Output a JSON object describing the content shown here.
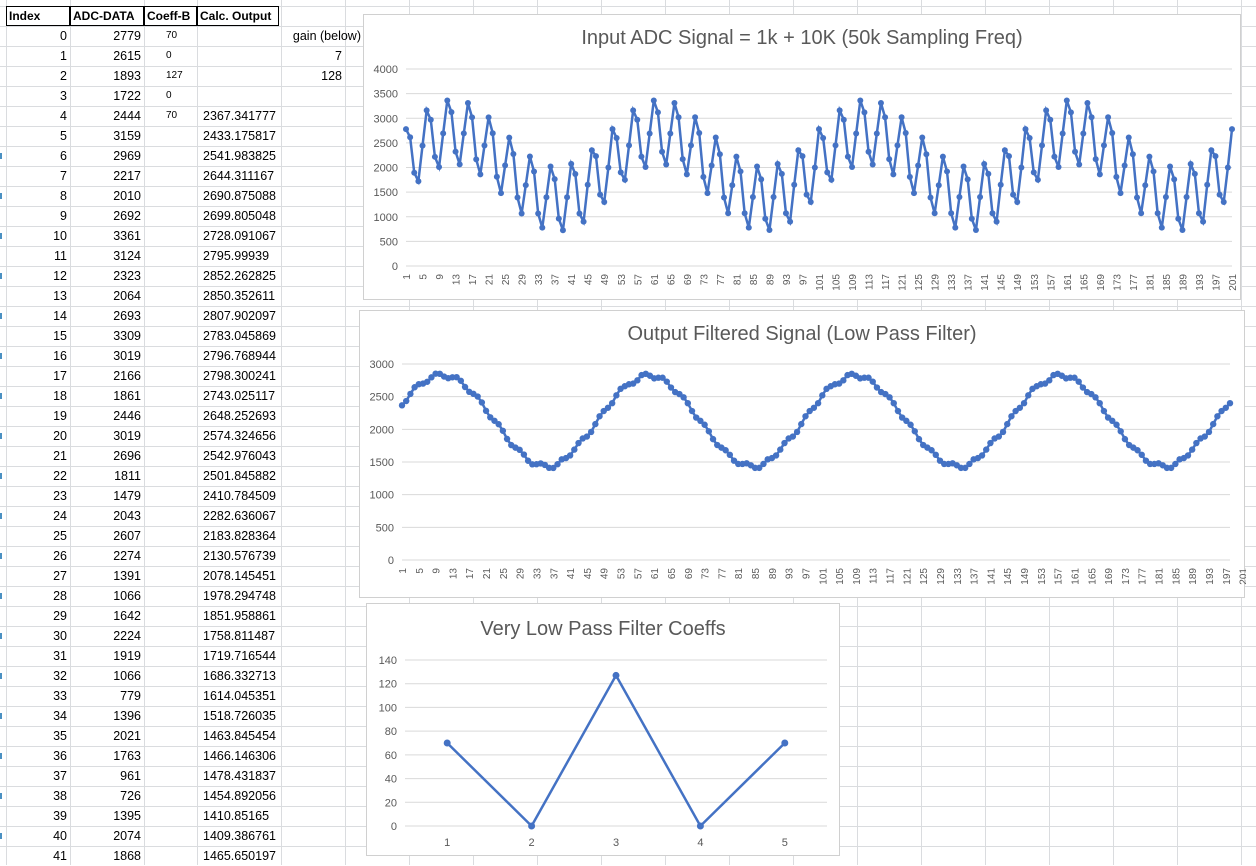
{
  "sheet": {
    "headers": {
      "index": "Index",
      "adc": "ADC-DATA",
      "coeff": "Coeff-B",
      "calc": "Calc. Output"
    },
    "gain_label": "gain (below)",
    "gain_values": [
      "7",
      "128"
    ],
    "rows": [
      {
        "index": "0",
        "adc": "2779",
        "coeff": "70",
        "calc": ""
      },
      {
        "index": "1",
        "adc": "2615",
        "coeff": "0",
        "calc": ""
      },
      {
        "index": "2",
        "adc": "1893",
        "coeff": "127",
        "calc": ""
      },
      {
        "index": "3",
        "adc": "1722",
        "coeff": "0",
        "calc": ""
      },
      {
        "index": "4",
        "adc": "2444",
        "coeff": "70",
        "calc": "2367.341777"
      },
      {
        "index": "5",
        "adc": "3159",
        "coeff": "",
        "calc": "2433.175817"
      },
      {
        "index": "6",
        "adc": "2969",
        "coeff": "",
        "calc": "2541.983825"
      },
      {
        "index": "7",
        "adc": "2217",
        "coeff": "",
        "calc": "2644.311167"
      },
      {
        "index": "8",
        "adc": "2010",
        "coeff": "",
        "calc": "2690.875088"
      },
      {
        "index": "9",
        "adc": "2692",
        "coeff": "",
        "calc": "2699.805048"
      },
      {
        "index": "10",
        "adc": "3361",
        "coeff": "",
        "calc": "2728.091067"
      },
      {
        "index": "11",
        "adc": "3124",
        "coeff": "",
        "calc": "2795.99939"
      },
      {
        "index": "12",
        "adc": "2323",
        "coeff": "",
        "calc": "2852.262825"
      },
      {
        "index": "13",
        "adc": "2064",
        "coeff": "",
        "calc": "2850.352611"
      },
      {
        "index": "14",
        "adc": "2693",
        "coeff": "",
        "calc": "2807.902097"
      },
      {
        "index": "15",
        "adc": "3309",
        "coeff": "",
        "calc": "2783.045869"
      },
      {
        "index": "16",
        "adc": "3019",
        "coeff": "",
        "calc": "2796.768944"
      },
      {
        "index": "17",
        "adc": "2166",
        "coeff": "",
        "calc": "2798.300241"
      },
      {
        "index": "18",
        "adc": "1861",
        "coeff": "",
        "calc": "2743.025117"
      },
      {
        "index": "19",
        "adc": "2446",
        "coeff": "",
        "calc": "2648.252693"
      },
      {
        "index": "20",
        "adc": "3019",
        "coeff": "",
        "calc": "2574.324656"
      },
      {
        "index": "21",
        "adc": "2696",
        "coeff": "",
        "calc": "2542.976043"
      },
      {
        "index": "22",
        "adc": "1811",
        "coeff": "",
        "calc": "2501.845882"
      },
      {
        "index": "23",
        "adc": "1479",
        "coeff": "",
        "calc": "2410.784509"
      },
      {
        "index": "24",
        "adc": "2043",
        "coeff": "",
        "calc": "2282.636067"
      },
      {
        "index": "25",
        "adc": "2607",
        "coeff": "",
        "calc": "2183.828364"
      },
      {
        "index": "26",
        "adc": "2274",
        "coeff": "",
        "calc": "2130.576739"
      },
      {
        "index": "27",
        "adc": "1391",
        "coeff": "",
        "calc": "2078.145451"
      },
      {
        "index": "28",
        "adc": "1066",
        "coeff": "",
        "calc": "1978.294748"
      },
      {
        "index": "29",
        "adc": "1642",
        "coeff": "",
        "calc": "1851.958861"
      },
      {
        "index": "30",
        "adc": "2224",
        "coeff": "",
        "calc": "1758.811487"
      },
      {
        "index": "31",
        "adc": "1919",
        "coeff": "",
        "calc": "1719.716544"
      },
      {
        "index": "32",
        "adc": "1066",
        "coeff": "",
        "calc": "1686.332713"
      },
      {
        "index": "33",
        "adc": "779",
        "coeff": "",
        "calc": "1614.045351"
      },
      {
        "index": "34",
        "adc": "1396",
        "coeff": "",
        "calc": "1518.726035"
      },
      {
        "index": "35",
        "adc": "2021",
        "coeff": "",
        "calc": "1463.845454"
      },
      {
        "index": "36",
        "adc": "1763",
        "coeff": "",
        "calc": "1466.146306"
      },
      {
        "index": "37",
        "adc": "961",
        "coeff": "",
        "calc": "1478.431837"
      },
      {
        "index": "38",
        "adc": "726",
        "coeff": "",
        "calc": "1454.892056"
      },
      {
        "index": "39",
        "adc": "1395",
        "coeff": "",
        "calc": "1410.85165"
      },
      {
        "index": "40",
        "adc": "2074",
        "coeff": "",
        "calc": "1409.386761"
      },
      {
        "index": "41",
        "adc": "1868",
        "coeff": "",
        "calc": "1465.650197"
      }
    ]
  },
  "colors": {
    "series": "#4472c4",
    "grid": "#d9d9d9",
    "axis_text": "#595959"
  },
  "chart_data": [
    {
      "type": "line",
      "title": "Input ADC Signal = 1k + 10K (50k Sampling Freq)",
      "ylim": [
        0,
        4000
      ],
      "yticks": [
        "0",
        "500",
        "1000",
        "1500",
        "2000",
        "2500",
        "3000",
        "3500",
        "4000"
      ],
      "x_count": 202,
      "x_tick_labels": [
        "1",
        "5",
        "9",
        "13",
        "17",
        "21",
        "25",
        "29",
        "33",
        "37",
        "41",
        "45",
        "49",
        "53",
        "57",
        "61",
        "65",
        "69",
        "73",
        "77",
        "81",
        "85",
        "89",
        "93",
        "97",
        "101",
        "105",
        "109",
        "113",
        "117",
        "121",
        "125",
        "129",
        "133",
        "137",
        "141",
        "145",
        "149",
        "153",
        "157",
        "161",
        "165",
        "169",
        "173",
        "177",
        "181",
        "185",
        "189",
        "193",
        "197",
        "201"
      ],
      "values": [
        2779,
        2615,
        1893,
        1722,
        2444,
        3159,
        2969,
        2217,
        2010,
        2692,
        3361,
        3124,
        2323,
        2064,
        2693,
        3309,
        3019,
        2166,
        1861,
        2446,
        3019,
        2696,
        1811,
        1479,
        2043,
        2607,
        2274,
        1391,
        1066,
        1642,
        2224,
        1919,
        1066,
        779,
        1396,
        2021,
        1763,
        961,
        726,
        1395,
        2074,
        1868,
        1066,
        900,
        1650,
        2350,
        2230,
        1450,
        1300,
        2000,
        2780,
        2600,
        1900,
        1750,
        2450,
        3160,
        2970,
        2220,
        2010,
        2690,
        3360,
        3120,
        2320,
        2060,
        2690,
        3310,
        3020,
        2170,
        1860,
        2450,
        3020,
        2700,
        1810,
        1480,
        2040,
        2610,
        2270,
        1390,
        1070,
        1640,
        2220,
        1920,
        1070,
        780,
        1400,
        2020,
        1760,
        960,
        730,
        1400,
        2070,
        1870,
        1070,
        900,
        1650,
        2350,
        2230,
        1450,
        1300,
        2000,
        2780,
        2600,
        1900,
        1750,
        2450,
        3160,
        2970,
        2220,
        2010,
        2690,
        3360,
        3120,
        2320,
        2060,
        2690,
        3310,
        3020,
        2170,
        1860,
        2450,
        3020,
        2700,
        1810,
        1480,
        2040,
        2610,
        2270,
        1390,
        1070,
        1640,
        2220,
        1920,
        1070,
        780,
        1400,
        2020,
        1760,
        960,
        730,
        1400,
        2070,
        1870,
        1070,
        900,
        1650,
        2350,
        2230,
        1450,
        1300,
        2000,
        2780,
        2600,
        1900,
        1750,
        2450,
        3160,
        2970,
        2220,
        2010,
        2690,
        3360,
        3120,
        2320,
        2060,
        2690,
        3310,
        3020,
        2170,
        1860,
        2450,
        3020,
        2700,
        1810,
        1480,
        2040,
        2610,
        2270,
        1390,
        1070,
        1640,
        2220,
        1920,
        1070,
        780,
        1400,
        2020,
        1760,
        960,
        730,
        1400,
        2070,
        1870,
        1070,
        900,
        1650,
        2350,
        2230,
        1450,
        1300,
        2000,
        2780
      ]
    },
    {
      "type": "line",
      "title": "Output Filtered Signal (Low Pass Filter)",
      "ylim": [
        0,
        3000
      ],
      "yticks": [
        "0",
        "500",
        "1000",
        "1500",
        "2000",
        "2500",
        "3000"
      ],
      "x_count": 202,
      "x_tick_labels": [
        "1",
        "5",
        "9",
        "13",
        "17",
        "21",
        "25",
        "29",
        "33",
        "37",
        "41",
        "45",
        "49",
        "53",
        "57",
        "61",
        "65",
        "69",
        "73",
        "77",
        "81",
        "85",
        "89",
        "93",
        "97",
        "101",
        "105",
        "109",
        "113",
        "117",
        "121",
        "125",
        "129",
        "133",
        "137",
        "141",
        "145",
        "149",
        "153",
        "157",
        "161",
        "165",
        "169",
        "173",
        "177",
        "181",
        "185",
        "189",
        "193",
        "197",
        "201"
      ],
      "values": [
        2367,
        2433,
        2542,
        2644,
        2691,
        2700,
        2728,
        2796,
        2852,
        2850,
        2808,
        2783,
        2797,
        2798,
        2743,
        2648,
        2574,
        2543,
        2502,
        2411,
        2283,
        2184,
        2131,
        2078,
        1978,
        1852,
        1759,
        1720,
        1686,
        1614,
        1519,
        1464,
        1466,
        1478,
        1455,
        1411,
        1409,
        1466,
        1540,
        1560,
        1600,
        1690,
        1790,
        1860,
        1890,
        1960,
        2080,
        2200,
        2280,
        2330,
        2400,
        2520,
        2620,
        2660,
        2690,
        2700,
        2750,
        2830,
        2850,
        2820,
        2780,
        2790,
        2790,
        2730,
        2640,
        2570,
        2540,
        2490,
        2400,
        2280,
        2180,
        2130,
        2070,
        1970,
        1850,
        1760,
        1720,
        1680,
        1610,
        1520,
        1470,
        1470,
        1480,
        1450,
        1410,
        1410,
        1470,
        1540,
        1560,
        1600,
        1690,
        1790,
        1860,
        1890,
        1960,
        2080,
        2200,
        2280,
        2330,
        2400,
        2520,
        2620,
        2660,
        2690,
        2700,
        2750,
        2830,
        2850,
        2820,
        2780,
        2790,
        2790,
        2730,
        2640,
        2570,
        2540,
        2490,
        2400,
        2280,
        2180,
        2130,
        2070,
        1970,
        1850,
        1760,
        1720,
        1680,
        1610,
        1520,
        1470,
        1470,
        1480,
        1450,
        1410,
        1410,
        1470,
        1540,
        1560,
        1600,
        1690,
        1790,
        1860,
        1890,
        1960,
        2080,
        2200,
        2280,
        2330,
        2400,
        2520,
        2620,
        2660,
        2690,
        2700,
        2750,
        2830,
        2850,
        2820,
        2780,
        2790,
        2790,
        2730,
        2640,
        2570,
        2540,
        2490,
        2400,
        2280,
        2180,
        2130,
        2070,
        1970,
        1850,
        1760,
        1720,
        1680,
        1610,
        1520,
        1470,
        1470,
        1480,
        1450,
        1410,
        1410,
        1470,
        1540,
        1560,
        1600,
        1690,
        1790,
        1860,
        1890,
        1960,
        2080,
        2200,
        2280,
        2330,
        2400
      ]
    },
    {
      "type": "line",
      "title": "Very Low Pass Filter Coeffs",
      "ylim": [
        0,
        140
      ],
      "yticks": [
        "0",
        "20",
        "40",
        "60",
        "80",
        "100",
        "120",
        "140"
      ],
      "categories": [
        "1",
        "2",
        "3",
        "4",
        "5"
      ],
      "values": [
        70,
        0,
        127,
        0,
        70
      ]
    }
  ]
}
